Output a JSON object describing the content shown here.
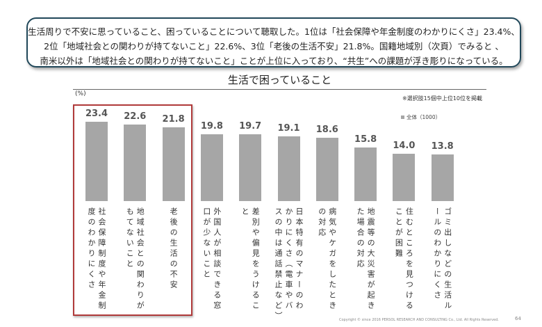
{
  "summary": {
    "line1": "生活周りで不安に思っていること、困っていることについて聴取した。1位は「社会保障や年金制度のわかりにくさ」23.4%、",
    "line2": "2位「地域社会との関わりが持てないこと」22.6%、3位「老後の生活不安」21.8%。国籍地域別（次頁）でみると 、",
    "line3": "南米以外は「地域社会との関わりが持てないこと」ことが上位に入っており、“共生”への課題が浮き彫りになっている。"
  },
  "chart_data": {
    "type": "bar",
    "title": "生活で困っていること",
    "ylabel": "(%)",
    "note": "※選択肢15個中上位10位を掲載",
    "legend": "全体（1000）",
    "ylim": [
      0,
      25
    ],
    "categories": [
      "社会保障制度や年金制度のわかりにくさ",
      "地域社会との関わりがもてないこと",
      "老後の生活の不安",
      "外国人が相談できる窓口が少ないこと",
      "差別や偏見をうけること",
      "日本特有のマナーのわかりにくさ（電車やバスの中は通話禁止など）",
      "病気やケガをしたときの対応",
      "地震等の大災害が起きた場合の対応",
      "住むところを見つけることが困難",
      "ゴミ出しなどの生活ルールのわかりにくさ"
    ],
    "values": [
      23.4,
      22.6,
      21.8,
      19.8,
      19.7,
      19.1,
      18.6,
      15.8,
      14.0,
      13.8
    ],
    "value_labels": [
      "23.4",
      "22.6",
      "21.8",
      "19.8",
      "19.7",
      "19.1",
      "18.6",
      "15.8",
      "14.0",
      "13.8"
    ],
    "highlighted_top": 3,
    "bar_color": "#a6a6a6",
    "highlight_color": "#b03a3a"
  },
  "footer": {
    "copyright": "Copyright © since 2016 PERSOL RESEARCH AND CONSULTING Co., Ltd. All Rights Reserved.",
    "page": "64"
  }
}
